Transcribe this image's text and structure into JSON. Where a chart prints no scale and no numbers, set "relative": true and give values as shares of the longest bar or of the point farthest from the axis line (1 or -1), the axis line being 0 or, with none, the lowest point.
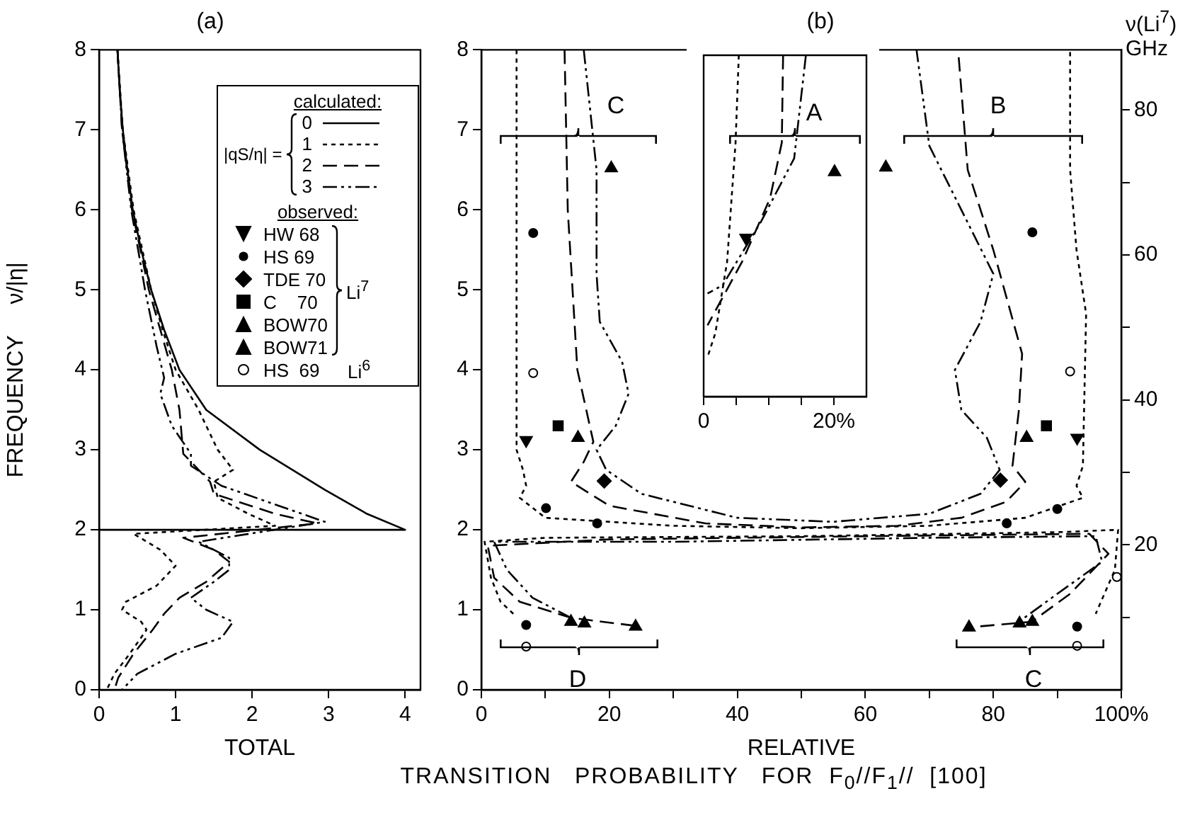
{
  "chart_data": [
    {
      "type": "line",
      "title": "(a)",
      "xlabel": "TOTAL",
      "ylabel": "FREQUENCY     ν/|η|",
      "legend": "top right",
      "legend_title": "calculated:",
      "annotations": [
        "|qS/η| =",
        "Li$^{7}$",
        "Li$^{6}$"
      ],
      "xlim": [
        0,
        4.2
      ],
      "ylim": [
        0,
        8
      ],
      "xticks": [
        0,
        1,
        2,
        3,
        4
      ],
      "yticks": [
        0,
        1,
        2,
        3,
        4,
        5,
        6,
        7,
        8
      ],
      "series": [
        {
          "name": "0",
          "color": "#000000",
          "line_style": "solid",
          "x": [
            0.24,
            0.27,
            0.31,
            0.37,
            0.44,
            0.55,
            0.68,
            0.85,
            1.05,
            1.4,
            2.1,
            2.95,
            3.5,
            4.0,
            0
          ],
          "values": [
            8,
            7.5,
            7,
            6.5,
            6,
            5.5,
            5,
            4.5,
            4,
            3.5,
            3,
            2.5,
            2.2,
            2,
            2
          ]
        },
        {
          "name": "1",
          "color": "#000000",
          "line_style": "dotted",
          "x": [
            0.24,
            0.31,
            0.45,
            0.68,
            0.83,
            1.0,
            1.3,
            1.55,
            1.75,
            1.5,
            1.55,
            1.95,
            2.3,
            0.45,
            0.8,
            1.0,
            0.75,
            0.35,
            0.3,
            0.55,
            0.62,
            0.4,
            0.2,
            0.1
          ],
          "values": [
            8,
            7,
            6,
            5,
            4.5,
            4,
            3.5,
            3,
            2.75,
            2.6,
            2.4,
            2.2,
            2.05,
            1.95,
            1.75,
            1.55,
            1.3,
            1.1,
            1.0,
            0.85,
            0.75,
            0.45,
            0.2,
            0
          ]
        },
        {
          "name": "2",
          "color": "#000000",
          "line_style": "dashed",
          "x": [
            0.24,
            0.3,
            0.43,
            0.65,
            0.8,
            0.95,
            1.05,
            1.1,
            1.45,
            1.5,
            2.3,
            2.85,
            1.1,
            1.5,
            1.7,
            1.4,
            1.05,
            0.85,
            0.7,
            0.45,
            0.25,
            0.2
          ],
          "values": [
            8,
            7,
            6,
            5,
            4.5,
            4,
            3.5,
            2.95,
            2.6,
            2.45,
            2.2,
            2.08,
            1.9,
            1.75,
            1.6,
            1.35,
            1.15,
            0.95,
            0.75,
            0.45,
            0.15,
            0
          ]
        },
        {
          "name": "3",
          "color": "#000000",
          "line_style": "dashdot",
          "x": [
            0.24,
            0.3,
            0.42,
            0.6,
            0.75,
            0.85,
            0.8,
            0.95,
            1.2,
            1.2,
            1.6,
            2.5,
            2.95,
            1.3,
            1.7,
            1.7,
            1.5,
            1.2,
            1.4,
            1.75,
            1.6,
            1.0,
            0.5,
            0.3
          ],
          "values": [
            8,
            7,
            6,
            5,
            4.3,
            3.9,
            3.7,
            3.3,
            2.95,
            2.8,
            2.55,
            2.25,
            2.1,
            1.85,
            1.65,
            1.5,
            1.35,
            1.15,
            1.0,
            0.85,
            0.65,
            0.45,
            0.2,
            0
          ]
        }
      ]
    },
    {
      "type": "line",
      "title": "(b)",
      "xlabel": "RELATIVE",
      "y2label": "ν(Li$^{7}$) GHz",
      "legend": "left",
      "legend_title": "observed:",
      "xlim": [
        0,
        100
      ],
      "ylim": [
        0,
        8
      ],
      "y2lim": [
        0,
        88.3
      ],
      "xticks": [
        0,
        {
          "value": 10,
          "label": null
        },
        20,
        {
          "value": 30,
          "label": null
        },
        40,
        {
          "value": 50,
          "label": null
        },
        60,
        {
          "value": 70,
          "label": null
        },
        80,
        {
          "value": 90,
          "label": null
        },
        {
          "value": 100,
          "label": "100%"
        }
      ],
      "yticks": [
        0,
        1,
        2,
        3,
        4,
        5,
        6,
        7,
        8
      ],
      "y2ticks": [
        {
          "value": 10,
          "label": null
        },
        20,
        {
          "value": 30,
          "label": null
        },
        40,
        {
          "value": 50,
          "label": null
        },
        60,
        {
          "value": 70,
          "label": null
        },
        80
      ],
      "annotations": [
        "C",
        "B",
        "D",
        "C",
        "TRANSITION   PROBABILITY   FOR  F$_{0}$//F$_{1}$//  [100]"
      ],
      "series": [
        {
          "color": "#000000",
          "line_style": "dotted",
          "x": [
            5.5,
            5.5,
            5.5,
            5.5,
            6.5,
            7,
            6,
            10,
            30,
            50,
            70,
            85,
            94,
            93,
            94,
            94.5,
            93,
            92,
            92
          ],
          "values": [
            8,
            6,
            4,
            3.0,
            2.75,
            2.55,
            2.4,
            2.15,
            2.05,
            2.02,
            2.05,
            2.15,
            2.4,
            2.55,
            2.8,
            4.7,
            5.5,
            6.5,
            8
          ]
        },
        {
          "color": "#000000",
          "line_style": "dashed",
          "x": [
            13,
            13.5,
            15,
            17.5,
            16,
            14,
            20,
            35,
            50,
            65,
            75,
            82,
            85,
            83,
            84,
            84.5,
            80,
            76,
            74.5
          ],
          "values": [
            8,
            6,
            4,
            3.1,
            2.85,
            2.6,
            2.3,
            2.08,
            2.03,
            2.05,
            2.15,
            2.35,
            2.6,
            2.8,
            3.5,
            4.2,
            5.5,
            6.5,
            8
          ]
        },
        {
          "color": "#000000",
          "line_style": "dashdot",
          "x": [
            16,
            18,
            18,
            18.5,
            22,
            23,
            21,
            18,
            19.5,
            25,
            40,
            55,
            70,
            78,
            81,
            79,
            75,
            74,
            78,
            80,
            75,
            70,
            68
          ],
          "values": [
            8,
            6.5,
            5.2,
            4.6,
            4.1,
            3.7,
            3.3,
            3.0,
            2.75,
            2.45,
            2.15,
            2.1,
            2.2,
            2.45,
            2.75,
            3.15,
            3.5,
            4,
            4.6,
            5.2,
            6.0,
            6.8,
            8
          ]
        },
        {
          "color": "#000000",
          "line_style": "dotted",
          "x": [
            5,
            3,
            1.5,
            0.5,
            10,
            50,
            90,
            99.5,
            99,
            96
          ],
          "values": [
            0.95,
            1.1,
            1.4,
            1.85,
            1.9,
            1.92,
            1.97,
            2.0,
            1.5,
            0.95
          ]
        },
        {
          "color": "#000000",
          "line_style": "dashed",
          "x": [
            24,
            14,
            6,
            2,
            1,
            20,
            60,
            95,
            98,
            92,
            86,
            76
          ],
          "values": [
            0.8,
            0.9,
            1.1,
            1.4,
            1.8,
            1.88,
            1.92,
            1.95,
            1.7,
            1.2,
            0.85,
            0.78
          ]
        },
        {
          "color": "#000000",
          "line_style": "dashdot",
          "x": [
            14,
            8,
            4,
            2,
            30,
            70,
            96,
            97,
            90,
            84
          ],
          "values": [
            0.9,
            1.15,
            1.5,
            1.85,
            1.85,
            1.9,
            1.92,
            1.6,
            1.2,
            0.85
          ]
        },
        {
          "name": "HW 68",
          "type": "scatter",
          "marker": "triangle-down",
          "color": "#000000",
          "x": [
            7.0,
            93.1
          ],
          "values": [
            3.12,
            3.15
          ]
        },
        {
          "name": "HS 69",
          "type": "scatter",
          "marker": "circle",
          "color": "#000000",
          "x": [
            8.1,
            10.1,
            18.1,
            7.0,
            86.1,
            90.0,
            82.1,
            93.1
          ],
          "values": [
            5.71,
            2.27,
            2.08,
            0.81,
            5.72,
            2.26,
            2.08,
            0.79
          ]
        },
        {
          "name": "TDE 70",
          "type": "scatter",
          "marker": "diamond",
          "color": "#000000",
          "x": [
            19.2,
            81.1
          ],
          "values": [
            2.61,
            2.62
          ]
        },
        {
          "name": "C    70",
          "type": "scatter",
          "marker": "square",
          "color": "#000000",
          "x": [
            12.0,
            88.3
          ],
          "values": [
            3.3,
            3.3
          ]
        },
        {
          "name": "BOW70",
          "type": "scatter",
          "marker": "triangle",
          "color": "#000000",
          "x": [
            15.1,
            14.0,
            16.1,
            85.2,
            84.1,
            86.1
          ],
          "values": [
            3.15,
            0.85,
            0.83,
            3.15,
            0.83,
            0.85
          ]
        },
        {
          "name": "BOW71",
          "type": "scatter",
          "marker": "triangle",
          "color": "#000000",
          "x": [
            20.3,
            24.1,
            63.2,
            76.2
          ],
          "values": [
            6.52,
            0.79,
            6.53,
            0.78
          ]
        },
        {
          "name": "HS  69",
          "type": "scatter",
          "marker": "circle",
          "color": "#ffffff",
          "x": [
            8.1,
            7.0,
            92.0,
            93.1,
            99.3
          ],
          "values": [
            3.96,
            0.54,
            3.98,
            0.55,
            1.41
          ]
        }
      ]
    },
    {
      "type": "line",
      "relative": true,
      "xlim": [
        0,
        25
      ],
      "tick_labels": "x",
      "xticks": [
        0,
        {
          "value": 5,
          "label": null
        },
        {
          "value": 10,
          "label": null
        },
        {
          "value": 15,
          "label": null
        },
        {
          "value": 20,
          "label": "20%"
        }
      ],
      "annotations": [
        "A"
      ],
      "series": [
        {
          "color": "#000000",
          "line_style": "dotted",
          "x": [
            5.4,
            4.9,
            3.6,
            1.8,
            0.6
          ],
          "values": [
            1,
            0.744,
            0.395,
            0.186,
            0.116
          ]
        },
        {
          "color": "#000000",
          "line_style": "dashed",
          "x": [
            12.2,
            12,
            10.2,
            5.9,
            0.6
          ],
          "values": [
            1,
            0.744,
            0.581,
            0.395,
            0.209
          ]
        },
        {
          "color": "#000000",
          "line_style": "dashdot",
          "x": [
            15.7,
            13.9,
            8.8,
            2.9,
            0.6
          ],
          "values": [
            1,
            0.698,
            0.512,
            0.326,
            0.302
          ]
        },
        {
          "type": "scatter",
          "marker": "triangle",
          "color": "#000000",
          "x": [
            20.1
          ],
          "values": [
            0.658
          ]
        },
        {
          "type": "scatter",
          "marker": "triangle-down",
          "color": "#000000",
          "x": [
            6.5
          ],
          "values": [
            0.465
          ]
        }
      ]
    }
  ]
}
